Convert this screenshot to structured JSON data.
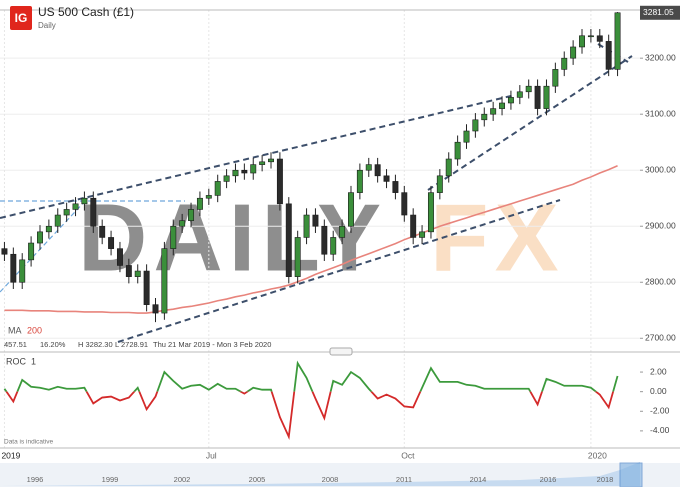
{
  "header": {
    "logo": "IG",
    "title": "US 500 Cash (£1)",
    "interval": "Daily"
  },
  "chart_data": [
    {
      "type": "candlestick",
      "categories": [
        "2019",
        null,
        null,
        null,
        null,
        null,
        null,
        null,
        null,
        null,
        null,
        null,
        null,
        null,
        null,
        null,
        null,
        null,
        null,
        null,
        null,
        null,
        null,
        "Jul",
        null,
        null,
        null,
        null,
        null,
        null,
        null,
        null,
        null,
        null,
        null,
        null,
        null,
        null,
        null,
        null,
        null,
        null,
        null,
        null,
        null,
        "Oct",
        null,
        null,
        null,
        null,
        null,
        null,
        null,
        null,
        null,
        null,
        null,
        null,
        null,
        null,
        null,
        null,
        null,
        null,
        null,
        null,
        "2020",
        null,
        null,
        null
      ],
      "open": [
        2860,
        2850,
        2800,
        2840,
        2870,
        2890,
        2900,
        2920,
        2930,
        2940,
        2950,
        2900,
        2880,
        2860,
        2830,
        2810,
        2820,
        2760,
        2745,
        2860,
        2900,
        2910,
        2930,
        2950,
        2955,
        2980,
        2990,
        3000,
        2995,
        3010,
        3015,
        3020,
        2940,
        2810,
        2880,
        2920,
        2900,
        2850,
        2880,
        2900,
        2960,
        3000,
        3010,
        2990,
        2980,
        2960,
        2920,
        2880,
        2890,
        2960,
        2990,
        3020,
        3050,
        3070,
        3090,
        3100,
        3110,
        3120,
        3130,
        3140,
        3150,
        3110,
        3150,
        3180,
        3200,
        3220,
        3240,
        3240,
        3230,
        3180
      ],
      "high": [
        2872,
        2862,
        2852,
        2882,
        2902,
        2912,
        2932,
        2942,
        2952,
        2962,
        2962,
        2912,
        2892,
        2872,
        2842,
        2832,
        2832,
        2772,
        2872,
        2912,
        2922,
        2942,
        2962,
        2967,
        2992,
        3002,
        3012,
        3012,
        3022,
        3027,
        3032,
        3032,
        2952,
        2892,
        2932,
        2932,
        2912,
        2892,
        2912,
        2972,
        3012,
        3022,
        3022,
        3002,
        2992,
        2972,
        2932,
        2902,
        2972,
        3002,
        3032,
        3062,
        3082,
        3102,
        3112,
        3122,
        3132,
        3142,
        3152,
        3162,
        3162,
        3162,
        3192,
        3212,
        3232,
        3252,
        3252,
        3252,
        3242,
        3282.3
      ],
      "low": [
        2838,
        2788,
        2788,
        2828,
        2858,
        2878,
        2888,
        2908,
        2918,
        2928,
        2888,
        2868,
        2848,
        2818,
        2798,
        2798,
        2748,
        2728.91,
        2733,
        2848,
        2888,
        2898,
        2918,
        2938,
        2943,
        2968,
        2978,
        2983,
        2983,
        2998,
        3003,
        2928,
        2798,
        2798,
        2868,
        2888,
        2838,
        2838,
        2868,
        2888,
        2948,
        2988,
        2978,
        2968,
        2948,
        2908,
        2868,
        2868,
        2878,
        2948,
        2978,
        3008,
        3038,
        3058,
        3078,
        3088,
        3098,
        3108,
        3118,
        3128,
        3098,
        3098,
        3138,
        3168,
        3188,
        3208,
        3228,
        3218,
        3168,
        3168
      ],
      "close": [
        2850,
        2800,
        2840,
        2870,
        2890,
        2900,
        2920,
        2930,
        2940,
        2950,
        2900,
        2880,
        2860,
        2830,
        2810,
        2820,
        2760,
        2745,
        2860,
        2900,
        2910,
        2930,
        2950,
        2955,
        2980,
        2990,
        3000,
        2995,
        3010,
        3015,
        3020,
        2940,
        2810,
        2880,
        2920,
        2900,
        2850,
        2880,
        2900,
        2960,
        3000,
        3010,
        2990,
        2980,
        2960,
        2920,
        2880,
        2890,
        2960,
        2990,
        3020,
        3050,
        3070,
        3090,
        3100,
        3110,
        3120,
        3130,
        3140,
        3150,
        3110,
        3150,
        3180,
        3200,
        3220,
        3240,
        3240,
        3230,
        3180,
        3281.05
      ],
      "up_color": "#3b8f3b",
      "down_color": "#2b2b2b",
      "ma_values": [
        2750,
        2750,
        2750,
        2749,
        2749,
        2749,
        2748,
        2748,
        2748,
        2747,
        2747,
        2747,
        2746,
        2746,
        2746,
        2745,
        2745,
        2747,
        2750,
        2752,
        2755,
        2757,
        2760,
        2763,
        2767,
        2770,
        2774,
        2777,
        2781,
        2784,
        2788,
        2791,
        2795,
        2801,
        2807,
        2814,
        2820,
        2826,
        2832,
        2839,
        2845,
        2851,
        2857,
        2863,
        2869,
        2876,
        2882,
        2888,
        2894,
        2900,
        2905,
        2910,
        2915,
        2920,
        2925,
        2930,
        2935,
        2940,
        2945,
        2950,
        2955,
        2960,
        2965,
        2970,
        2975,
        2982,
        2988,
        2995,
        3001,
        3008
      ],
      "ma_color": "#e8847c",
      "ylim": [
        2688,
        3286
      ],
      "yticks": [
        {
          "value": 2700,
          "label": "2700.00"
        },
        {
          "value": 2800,
          "label": "2800.00"
        },
        {
          "value": 2900,
          "label": "2900.00"
        },
        {
          "value": 3000,
          "label": "3000.00"
        },
        {
          "value": 3100,
          "label": "3100.00"
        },
        {
          "value": 3200,
          "label": "3200.00"
        }
      ],
      "grid": true
    },
    {
      "type": "line",
      "title": "ROC",
      "period": "1",
      "values": [
        0.3,
        -1.0,
        1.2,
        0.5,
        0.4,
        0.2,
        0.5,
        0.3,
        0.3,
        0.4,
        -1.2,
        -0.6,
        -0.5,
        -0.9,
        -0.6,
        0.4,
        -1.8,
        -0.5,
        2.0,
        1.1,
        0.3,
        0.6,
        0.7,
        0.2,
        0.8,
        0.3,
        0.3,
        -0.2,
        0.4,
        0.2,
        0.2,
        -2.6,
        -4.6,
        2.9,
        1.4,
        -0.7,
        -2.7,
        1.1,
        0.7,
        2.0,
        1.4,
        0.3,
        -0.7,
        -0.3,
        -0.7,
        -1.5,
        -1.6,
        0.4,
        2.4,
        1.0,
        1.0,
        1.0,
        0.7,
        0.6,
        0.3,
        0.3,
        0.3,
        0.3,
        0.3,
        0.3,
        -1.3,
        1.3,
        1.0,
        0.6,
        0.6,
        0.6,
        0.4,
        -0.3,
        -1.6,
        1.6
      ],
      "up_color": "#3c9a3c",
      "down_color": "#d42a2a",
      "ylim": [
        -5.44,
        3.74
      ],
      "yticks": [
        {
          "value": -4,
          "label": "-4.00"
        },
        {
          "value": -2,
          "label": "-2.00"
        },
        {
          "value": 0,
          "label": "0.00"
        },
        {
          "value": 2,
          "label": "2.00"
        }
      ]
    }
  ],
  "info": {
    "ma_label": "MA",
    "ma_period": "200",
    "change": "457.51",
    "change_pct": "16.20%",
    "high": "H 3282.30",
    "low": "L 2728.91",
    "range": "Thu 21 Mar 2019 - Mon 3 Feb 2020"
  },
  "note": "Data is indicative",
  "watermark": [
    "DAILY",
    "FX"
  ],
  "navigator": {
    "years": [
      "1996",
      "1999",
      "2002",
      "2005",
      "2008",
      "2011",
      "2014",
      "2016",
      "2018"
    ]
  }
}
